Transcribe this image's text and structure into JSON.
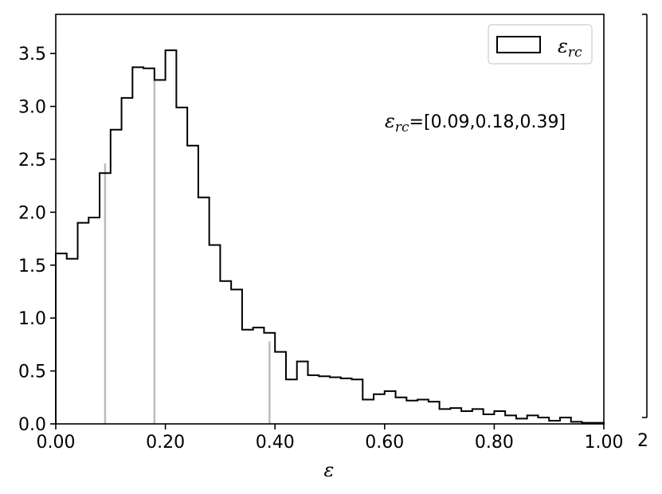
{
  "chart_data": {
    "type": "histogram",
    "xlabel": "ε",
    "xlim": [
      0,
      1
    ],
    "ylim": [
      0,
      3.87
    ],
    "xticks": [
      0,
      0.2,
      0.4,
      0.6,
      0.8,
      1.0
    ],
    "xtick_labels": [
      "0.00",
      "0.20",
      "0.40",
      "0.60",
      "0.80",
      "1.00"
    ],
    "yticks": [
      0,
      0.5,
      1.0,
      1.5,
      2.0,
      2.5,
      3.0,
      3.5
    ],
    "ytick_labels": [
      "0.0",
      "0.5",
      "1.0",
      "1.5",
      "2.0",
      "2.5",
      "3.0",
      "3.5"
    ],
    "series": [
      {
        "name": "ε_rc",
        "bin_edges": [
          0,
          0.02,
          0.04,
          0.06,
          0.08,
          0.1,
          0.12,
          0.14,
          0.16,
          0.18,
          0.2,
          0.22,
          0.24,
          0.26,
          0.28,
          0.3,
          0.32,
          0.34,
          0.36,
          0.38,
          0.4,
          0.42,
          0.44,
          0.46,
          0.48,
          0.5,
          0.52,
          0.54,
          0.56,
          0.58,
          0.6,
          0.62,
          0.64,
          0.66,
          0.68,
          0.7,
          0.72,
          0.74,
          0.76,
          0.78,
          0.8,
          0.82,
          0.84,
          0.86,
          0.88,
          0.9,
          0.92,
          0.94,
          0.96,
          0.98,
          1.0
        ],
        "values": [
          1.61,
          1.56,
          1.9,
          1.95,
          2.37,
          2.78,
          3.08,
          3.37,
          3.36,
          3.25,
          3.53,
          2.99,
          2.63,
          2.14,
          1.69,
          1.35,
          1.27,
          0.89,
          0.91,
          0.86,
          0.68,
          0.42,
          0.59,
          0.46,
          0.45,
          0.44,
          0.43,
          0.42,
          0.23,
          0.28,
          0.31,
          0.25,
          0.22,
          0.23,
          0.21,
          0.14,
          0.15,
          0.12,
          0.14,
          0.09,
          0.12,
          0.08,
          0.05,
          0.08,
          0.06,
          0.03,
          0.06,
          0.02,
          0.01,
          0.01
        ]
      }
    ],
    "markers": {
      "x": [
        0.09,
        0.18,
        0.39
      ],
      "heights": [
        2.46,
        3.25,
        0.78
      ],
      "color": "#bbbbbb"
    },
    "legend": {
      "position": "top-right",
      "label": "ε_rc"
    },
    "annotation": {
      "sym": "ε",
      "sub": "rc",
      "text": "=[0.09,0.18,0.39]"
    },
    "right_axis": {
      "tick_label": "2"
    }
  }
}
